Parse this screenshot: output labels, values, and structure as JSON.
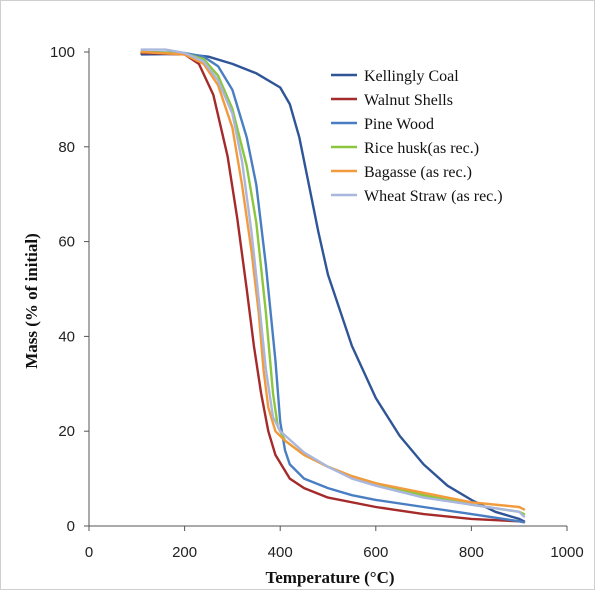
{
  "chart_data": {
    "type": "line",
    "xlabel": "Temperature (°C)",
    "ylabel": "Mass (% of initial)",
    "xlim": [
      0,
      1000
    ],
    "ylim": [
      0,
      100
    ],
    "xticks": [
      0,
      200,
      400,
      600,
      800,
      1000
    ],
    "yticks": [
      0,
      20,
      40,
      60,
      80,
      100
    ],
    "grid": false,
    "legend_position": "top-right",
    "series": [
      {
        "name": "Kellingly Coal",
        "color": "#2f5597",
        "points": [
          [
            110,
            99.5
          ],
          [
            200,
            99.6
          ],
          [
            250,
            99
          ],
          [
            300,
            97.5
          ],
          [
            350,
            95.5
          ],
          [
            400,
            92.5
          ],
          [
            420,
            89
          ],
          [
            440,
            82
          ],
          [
            460,
            72
          ],
          [
            480,
            62
          ],
          [
            500,
            53
          ],
          [
            550,
            38
          ],
          [
            600,
            27
          ],
          [
            650,
            19
          ],
          [
            700,
            13
          ],
          [
            750,
            8.5
          ],
          [
            800,
            5.5
          ],
          [
            850,
            3
          ],
          [
            900,
            1.5
          ],
          [
            910,
            1
          ]
        ]
      },
      {
        "name": "Walnut Shells",
        "color": "#a52a2a",
        "points": [
          [
            110,
            99.8
          ],
          [
            200,
            99.5
          ],
          [
            230,
            97.5
          ],
          [
            260,
            91
          ],
          [
            290,
            78
          ],
          [
            310,
            65
          ],
          [
            330,
            50
          ],
          [
            345,
            38
          ],
          [
            360,
            28
          ],
          [
            375,
            20
          ],
          [
            390,
            15
          ],
          [
            420,
            10
          ],
          [
            450,
            8
          ],
          [
            500,
            6
          ],
          [
            600,
            4
          ],
          [
            700,
            2.5
          ],
          [
            800,
            1.5
          ],
          [
            900,
            1
          ],
          [
            910,
            0.8
          ]
        ]
      },
      {
        "name": "Pine Wood",
        "color": "#4a7ec2",
        "points": [
          [
            110,
            100
          ],
          [
            200,
            99.8
          ],
          [
            240,
            99
          ],
          [
            270,
            97
          ],
          [
            300,
            92
          ],
          [
            330,
            82
          ],
          [
            350,
            72
          ],
          [
            370,
            55
          ],
          [
            390,
            35
          ],
          [
            400,
            22
          ],
          [
            410,
            16
          ],
          [
            420,
            13
          ],
          [
            450,
            10
          ],
          [
            500,
            8
          ],
          [
            550,
            6.5
          ],
          [
            600,
            5.5
          ],
          [
            700,
            4
          ],
          [
            800,
            2.5
          ],
          [
            900,
            1
          ],
          [
            910,
            0.8
          ]
        ]
      },
      {
        "name": "Rice husk(as rec.)",
        "color": "#8cc63e",
        "points": [
          [
            110,
            100
          ],
          [
            200,
            99.7
          ],
          [
            240,
            98.5
          ],
          [
            270,
            95
          ],
          [
            300,
            88
          ],
          [
            330,
            76
          ],
          [
            350,
            64
          ],
          [
            370,
            45
          ],
          [
            385,
            28
          ],
          [
            395,
            21
          ],
          [
            410,
            18
          ],
          [
            450,
            15
          ],
          [
            500,
            12.5
          ],
          [
            550,
            10.5
          ],
          [
            600,
            9
          ],
          [
            700,
            6.5
          ],
          [
            800,
            4.5
          ],
          [
            900,
            3
          ],
          [
            910,
            2.5
          ]
        ]
      },
      {
        "name": "Bagasse (as rec.)",
        "color": "#f39a3c",
        "points": [
          [
            110,
            100
          ],
          [
            200,
            99.5
          ],
          [
            240,
            97.5
          ],
          [
            270,
            93
          ],
          [
            300,
            84
          ],
          [
            320,
            72
          ],
          [
            340,
            58
          ],
          [
            355,
            45
          ],
          [
            365,
            33
          ],
          [
            375,
            25
          ],
          [
            390,
            20
          ],
          [
            410,
            18
          ],
          [
            450,
            15
          ],
          [
            500,
            12.5
          ],
          [
            550,
            10.5
          ],
          [
            600,
            9
          ],
          [
            700,
            7
          ],
          [
            800,
            5
          ],
          [
            900,
            4
          ],
          [
            910,
            3.5
          ]
        ]
      },
      {
        "name": "Wheat Straw (as rec.)",
        "color": "#a9b7de",
        "points": [
          [
            110,
            100.5
          ],
          [
            160,
            100.5
          ],
          [
            200,
            99.8
          ],
          [
            240,
            98
          ],
          [
            270,
            94
          ],
          [
            300,
            87
          ],
          [
            320,
            77
          ],
          [
            340,
            62
          ],
          [
            355,
            48
          ],
          [
            370,
            33
          ],
          [
            385,
            23
          ],
          [
            400,
            20
          ],
          [
            450,
            15.5
          ],
          [
            500,
            12.5
          ],
          [
            550,
            10
          ],
          [
            600,
            8.5
          ],
          [
            700,
            6
          ],
          [
            800,
            4.5
          ],
          [
            900,
            3
          ],
          [
            910,
            2
          ]
        ]
      }
    ]
  }
}
